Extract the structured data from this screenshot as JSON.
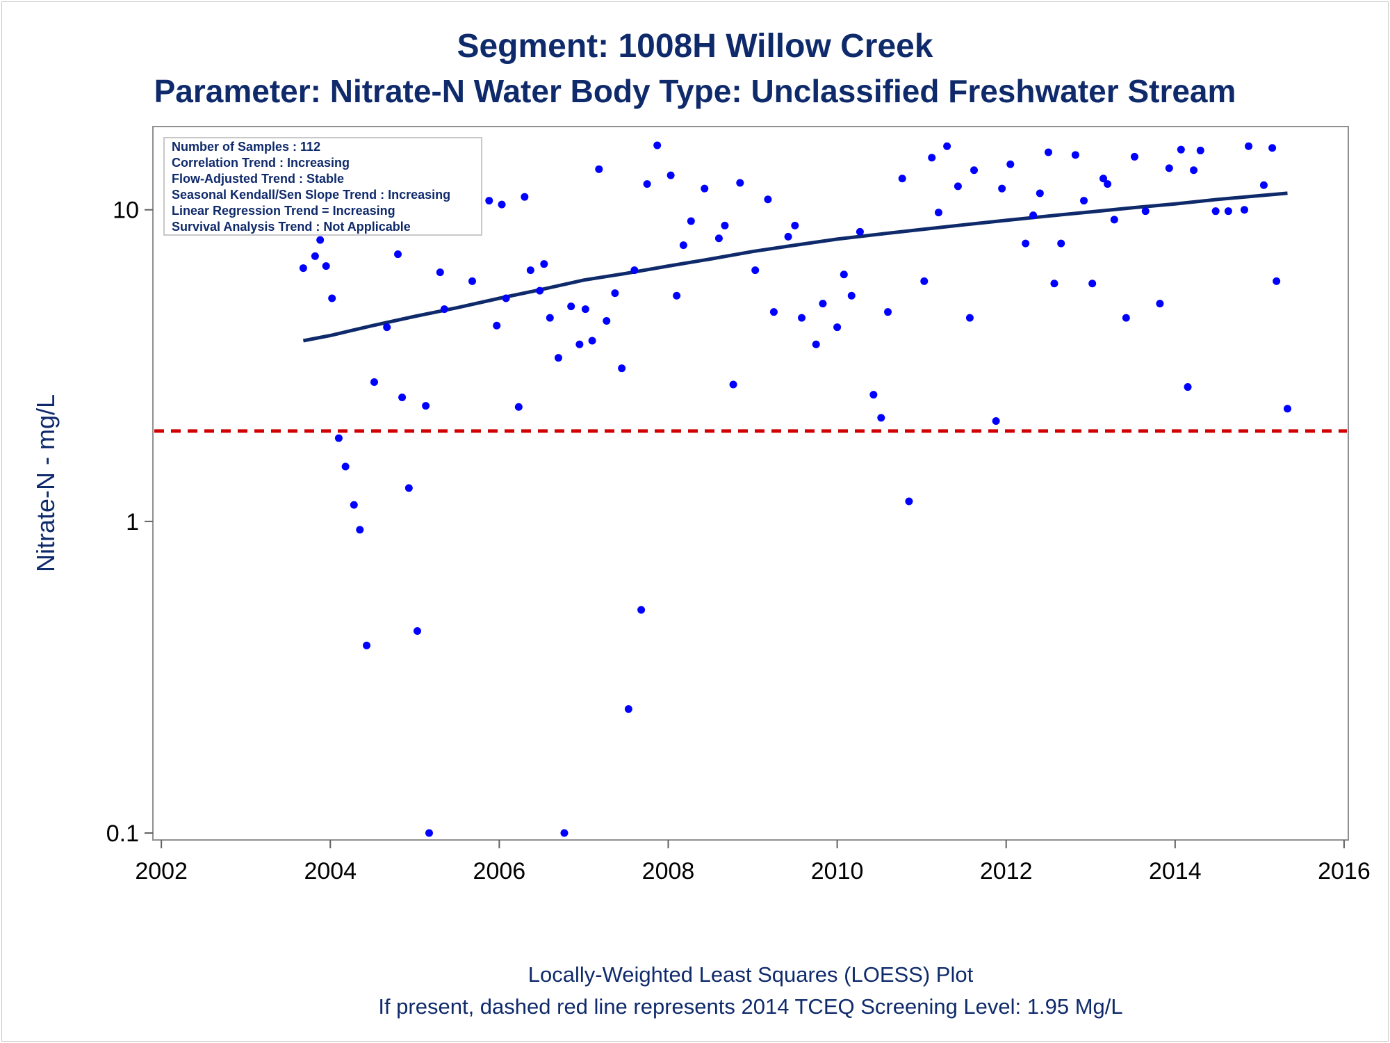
{
  "chart_data": {
    "type": "scatter",
    "title": "Segment: 1008H  Willow Creek",
    "subtitle": "Parameter: Nitrate-N   Water Body Type: Unclassified Freshwater Stream",
    "ylabel": "Nitrate-N - mg/L",
    "xlabel": "",
    "yscale": "log",
    "ylim": [
      0.095,
      18.5
    ],
    "xlim": [
      2001.9,
      2016.05
    ],
    "x_ticks": [
      "2002",
      "2004",
      "2006",
      "2008",
      "2010",
      "2012",
      "2014",
      "2016"
    ],
    "y_ticks": [
      "0.1",
      "1",
      "10"
    ],
    "grid": false,
    "inset_box": {
      "position": "top-left",
      "lines": [
        "Number of Samples : 112",
        "Correlation Trend : Increasing",
        "Flow-Adjusted Trend : Stable",
        "Seasonal Kendall/Sen Slope Trend : Increasing",
        "Linear Regression Trend = Increasing",
        "Survival Analysis Trend : Not Applicable"
      ]
    },
    "footnotes": [
      "Locally-Weighted Least Squares (LOESS) Plot",
      "If present, dashed red line represents 2014 TCEQ Screening Level: 1.95 Mg/L"
    ],
    "screening_level": 1.95,
    "colors": {
      "points": "#0000ff",
      "trend": "#0f2a6b",
      "screening": "#d00000",
      "text": "#0f2a6b"
    },
    "points": [
      {
        "x": 2003.68,
        "y": 6.5
      },
      {
        "x": 2003.82,
        "y": 7.1
      },
      {
        "x": 2003.88,
        "y": 8.0
      },
      {
        "x": 2003.95,
        "y": 6.6
      },
      {
        "x": 2004.02,
        "y": 5.2
      },
      {
        "x": 2004.1,
        "y": 1.85
      },
      {
        "x": 2004.18,
        "y": 1.5
      },
      {
        "x": 2004.28,
        "y": 1.13
      },
      {
        "x": 2004.35,
        "y": 0.94
      },
      {
        "x": 2004.43,
        "y": 0.4
      },
      {
        "x": 2004.52,
        "y": 2.8
      },
      {
        "x": 2004.67,
        "y": 4.2
      },
      {
        "x": 2004.8,
        "y": 7.2
      },
      {
        "x": 2004.85,
        "y": 2.5
      },
      {
        "x": 2004.93,
        "y": 1.28
      },
      {
        "x": 2005.03,
        "y": 0.445
      },
      {
        "x": 2005.13,
        "y": 2.35
      },
      {
        "x": 2005.17,
        "y": 0.1
      },
      {
        "x": 2005.3,
        "y": 6.3
      },
      {
        "x": 2005.35,
        "y": 4.8
      },
      {
        "x": 2005.68,
        "y": 5.9
      },
      {
        "x": 2005.75,
        "y": 10.3
      },
      {
        "x": 2005.88,
        "y": 10.7
      },
      {
        "x": 2005.97,
        "y": 4.25
      },
      {
        "x": 2006.03,
        "y": 10.4
      },
      {
        "x": 2006.08,
        "y": 5.2
      },
      {
        "x": 2006.23,
        "y": 2.33
      },
      {
        "x": 2006.3,
        "y": 11.0
      },
      {
        "x": 2006.37,
        "y": 6.4
      },
      {
        "x": 2006.48,
        "y": 5.5
      },
      {
        "x": 2006.53,
        "y": 6.7
      },
      {
        "x": 2006.6,
        "y": 4.5
      },
      {
        "x": 2006.7,
        "y": 3.35
      },
      {
        "x": 2006.77,
        "y": 0.1
      },
      {
        "x": 2006.85,
        "y": 4.9
      },
      {
        "x": 2006.95,
        "y": 3.7
      },
      {
        "x": 2007.02,
        "y": 4.8
      },
      {
        "x": 2007.1,
        "y": 3.8
      },
      {
        "x": 2007.18,
        "y": 13.5
      },
      {
        "x": 2007.27,
        "y": 4.4
      },
      {
        "x": 2007.37,
        "y": 5.4
      },
      {
        "x": 2007.45,
        "y": 3.1
      },
      {
        "x": 2007.53,
        "y": 0.25
      },
      {
        "x": 2007.6,
        "y": 6.4
      },
      {
        "x": 2007.68,
        "y": 0.52
      },
      {
        "x": 2007.75,
        "y": 12.1
      },
      {
        "x": 2007.87,
        "y": 16.1
      },
      {
        "x": 2008.03,
        "y": 12.9
      },
      {
        "x": 2008.1,
        "y": 5.3
      },
      {
        "x": 2008.18,
        "y": 7.7
      },
      {
        "x": 2008.27,
        "y": 9.2
      },
      {
        "x": 2008.43,
        "y": 11.7
      },
      {
        "x": 2008.6,
        "y": 8.1
      },
      {
        "x": 2008.67,
        "y": 8.9
      },
      {
        "x": 2008.77,
        "y": 2.75
      },
      {
        "x": 2008.85,
        "y": 12.2
      },
      {
        "x": 2009.03,
        "y": 6.4
      },
      {
        "x": 2009.18,
        "y": 10.8
      },
      {
        "x": 2009.25,
        "y": 4.7
      },
      {
        "x": 2009.42,
        "y": 8.2
      },
      {
        "x": 2009.5,
        "y": 8.9
      },
      {
        "x": 2009.58,
        "y": 4.5
      },
      {
        "x": 2009.75,
        "y": 3.7
      },
      {
        "x": 2009.83,
        "y": 5.0
      },
      {
        "x": 2010.0,
        "y": 4.2
      },
      {
        "x": 2010.08,
        "y": 6.2
      },
      {
        "x": 2010.17,
        "y": 5.3
      },
      {
        "x": 2010.27,
        "y": 8.5
      },
      {
        "x": 2010.43,
        "y": 2.55
      },
      {
        "x": 2010.52,
        "y": 2.15
      },
      {
        "x": 2010.6,
        "y": 4.7
      },
      {
        "x": 2010.77,
        "y": 12.6
      },
      {
        "x": 2010.85,
        "y": 1.16
      },
      {
        "x": 2011.03,
        "y": 5.9
      },
      {
        "x": 2011.12,
        "y": 14.7
      },
      {
        "x": 2011.2,
        "y": 9.8
      },
      {
        "x": 2011.3,
        "y": 16.0
      },
      {
        "x": 2011.43,
        "y": 11.9
      },
      {
        "x": 2011.57,
        "y": 4.5
      },
      {
        "x": 2011.62,
        "y": 13.4
      },
      {
        "x": 2011.88,
        "y": 2.1
      },
      {
        "x": 2011.95,
        "y": 11.7
      },
      {
        "x": 2012.05,
        "y": 14.0
      },
      {
        "x": 2012.23,
        "y": 7.8
      },
      {
        "x": 2012.32,
        "y": 9.6
      },
      {
        "x": 2012.4,
        "y": 11.3
      },
      {
        "x": 2012.5,
        "y": 15.3
      },
      {
        "x": 2012.57,
        "y": 5.8
      },
      {
        "x": 2012.65,
        "y": 7.8
      },
      {
        "x": 2012.82,
        "y": 15.0
      },
      {
        "x": 2012.92,
        "y": 10.7
      },
      {
        "x": 2013.02,
        "y": 5.8
      },
      {
        "x": 2013.15,
        "y": 12.6
      },
      {
        "x": 2013.2,
        "y": 12.1
      },
      {
        "x": 2013.28,
        "y": 9.3
      },
      {
        "x": 2013.42,
        "y": 4.5
      },
      {
        "x": 2013.52,
        "y": 14.8
      },
      {
        "x": 2013.65,
        "y": 9.9
      },
      {
        "x": 2013.82,
        "y": 5.0
      },
      {
        "x": 2013.93,
        "y": 13.6
      },
      {
        "x": 2014.07,
        "y": 15.6
      },
      {
        "x": 2014.15,
        "y": 2.7
      },
      {
        "x": 2014.22,
        "y": 13.4
      },
      {
        "x": 2014.3,
        "y": 15.5
      },
      {
        "x": 2014.48,
        "y": 9.9
      },
      {
        "x": 2014.63,
        "y": 9.9
      },
      {
        "x": 2014.82,
        "y": 10.0
      },
      {
        "x": 2014.87,
        "y": 16.0
      },
      {
        "x": 2015.05,
        "y": 12.0
      },
      {
        "x": 2015.15,
        "y": 15.8
      },
      {
        "x": 2015.2,
        "y": 5.9
      },
      {
        "x": 2015.33,
        "y": 2.3
      }
    ],
    "trend": [
      {
        "x": 2003.68,
        "y": 3.8
      },
      {
        "x": 2004.0,
        "y": 3.95
      },
      {
        "x": 2004.5,
        "y": 4.25
      },
      {
        "x": 2005.0,
        "y": 4.55
      },
      {
        "x": 2005.5,
        "y": 4.85
      },
      {
        "x": 2006.0,
        "y": 5.2
      },
      {
        "x": 2006.5,
        "y": 5.55
      },
      {
        "x": 2007.0,
        "y": 5.95
      },
      {
        "x": 2007.5,
        "y": 6.25
      },
      {
        "x": 2008.0,
        "y": 6.6
      },
      {
        "x": 2008.5,
        "y": 6.95
      },
      {
        "x": 2009.0,
        "y": 7.35
      },
      {
        "x": 2009.5,
        "y": 7.7
      },
      {
        "x": 2010.0,
        "y": 8.05
      },
      {
        "x": 2010.5,
        "y": 8.35
      },
      {
        "x": 2011.0,
        "y": 8.65
      },
      {
        "x": 2011.5,
        "y": 8.95
      },
      {
        "x": 2012.0,
        "y": 9.25
      },
      {
        "x": 2012.5,
        "y": 9.55
      },
      {
        "x": 2013.0,
        "y": 9.85
      },
      {
        "x": 2013.5,
        "y": 10.15
      },
      {
        "x": 2014.0,
        "y": 10.45
      },
      {
        "x": 2014.5,
        "y": 10.8
      },
      {
        "x": 2015.0,
        "y": 11.1
      },
      {
        "x": 2015.33,
        "y": 11.3
      }
    ]
  }
}
